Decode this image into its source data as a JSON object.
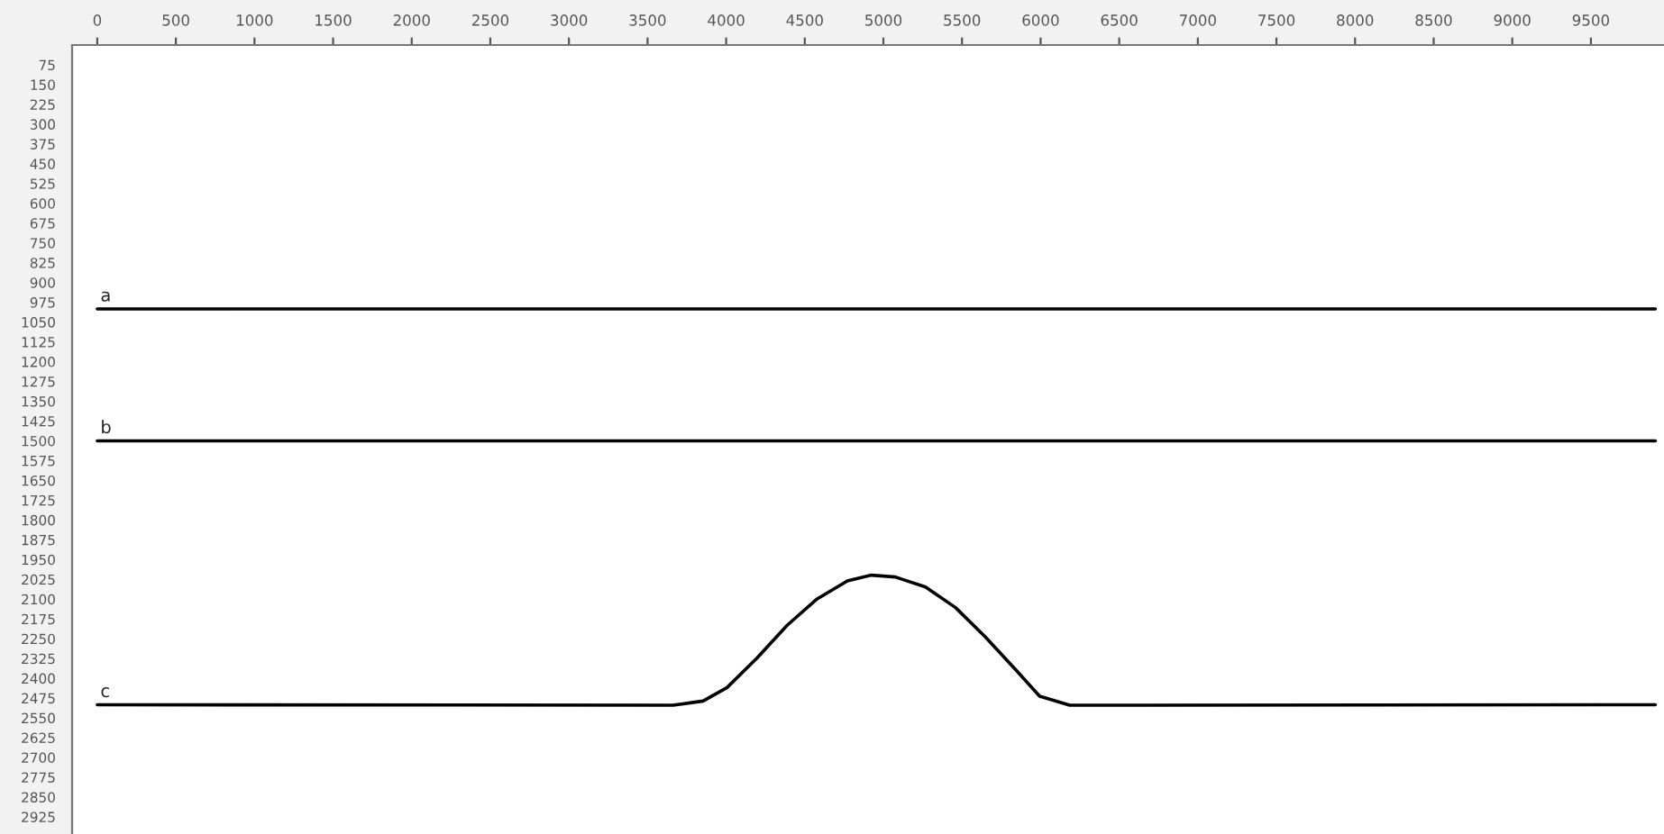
{
  "chart_data": {
    "type": "line",
    "xlim": [
      -160,
      9965
    ],
    "ylim": [
      2990,
      0
    ],
    "xticks": [
      0,
      500,
      1000,
      1500,
      2000,
      2500,
      3000,
      3500,
      4000,
      4500,
      5000,
      5500,
      6000,
      6500,
      7000,
      7500,
      8000,
      8500,
      9000,
      9500
    ],
    "yticks": [
      75,
      150,
      225,
      300,
      375,
      450,
      525,
      600,
      675,
      750,
      825,
      900,
      975,
      1050,
      1125,
      1200,
      1275,
      1350,
      1425,
      1500,
      1575,
      1650,
      1725,
      1800,
      1875,
      1950,
      2025,
      2100,
      2175,
      2250,
      2325,
      2400,
      2475,
      2550,
      2625,
      2700,
      2775,
      2850,
      2925
    ],
    "grid": false,
    "legend": false,
    "marker": "none",
    "line_style": "solid",
    "series": [
      {
        "name": "a",
        "color": "#000000",
        "x": [
          0,
          9910
        ],
        "values": [
          1000,
          1000
        ]
      },
      {
        "name": "b",
        "color": "#000000",
        "x": [
          0,
          9910
        ],
        "values": [
          1500,
          1500
        ]
      },
      {
        "name": "c",
        "color": "#000000",
        "x": [
          0,
          3662,
          3853,
          4006,
          4197,
          4388,
          4579,
          4771,
          4924,
          5076,
          5268,
          5459,
          5650,
          5841,
          5994,
          6185,
          9910
        ],
        "values": [
          2500,
          2502,
          2486,
          2435,
          2323,
          2199,
          2099,
          2031,
          2009,
          2016,
          2054,
          2132,
          2244,
          2367,
          2468,
          2502,
          2500
        ]
      }
    ]
  }
}
